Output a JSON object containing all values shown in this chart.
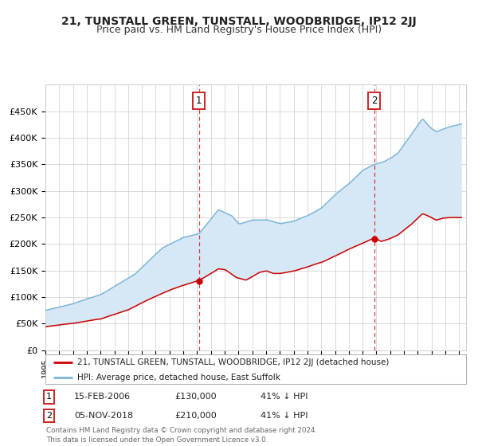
{
  "title": "21, TUNSTALL GREEN, TUNSTALL, WOODBRIDGE, IP12 2JJ",
  "subtitle": "Price paid vs. HM Land Registry's House Price Index (HPI)",
  "title_fontsize": 10,
  "subtitle_fontsize": 9,
  "ylim": [
    0,
    500000
  ],
  "yticks": [
    0,
    50000,
    100000,
    150000,
    200000,
    250000,
    300000,
    350000,
    400000,
    450000
  ],
  "ytick_labels": [
    "£0",
    "£50K",
    "£100K",
    "£150K",
    "£200K",
    "£250K",
    "£300K",
    "£350K",
    "£400K",
    "£450K"
  ],
  "sale1_date_num": 2006.12,
  "sale1_price": 130000,
  "sale1_label": "1",
  "sale1_text": "15-FEB-2006",
  "sale1_price_text": "£130,000",
  "sale1_pct_text": "41% ↓ HPI",
  "sale2_date_num": 2018.84,
  "sale2_price": 210000,
  "sale2_label": "2",
  "sale2_text": "05-NOV-2018",
  "sale2_price_text": "£210,000",
  "sale2_pct_text": "41% ↓ HPI",
  "hpi_color": "#7ab4d8",
  "price_color": "#cc0000",
  "fill_color": "#d6e8f5",
  "bg_color": "#ffffff",
  "grid_color": "#cccccc",
  "legend_label_price": "21, TUNSTALL GREEN, TUNSTALL, WOODBRIDGE, IP12 2JJ (detached house)",
  "legend_label_hpi": "HPI: Average price, detached house, East Suffolk",
  "footer_text": "Contains HM Land Registry data © Crown copyright and database right 2024.\nThis data is licensed under the Open Government Licence v3.0.",
  "xstart": 1995.0,
  "xend": 2025.5
}
